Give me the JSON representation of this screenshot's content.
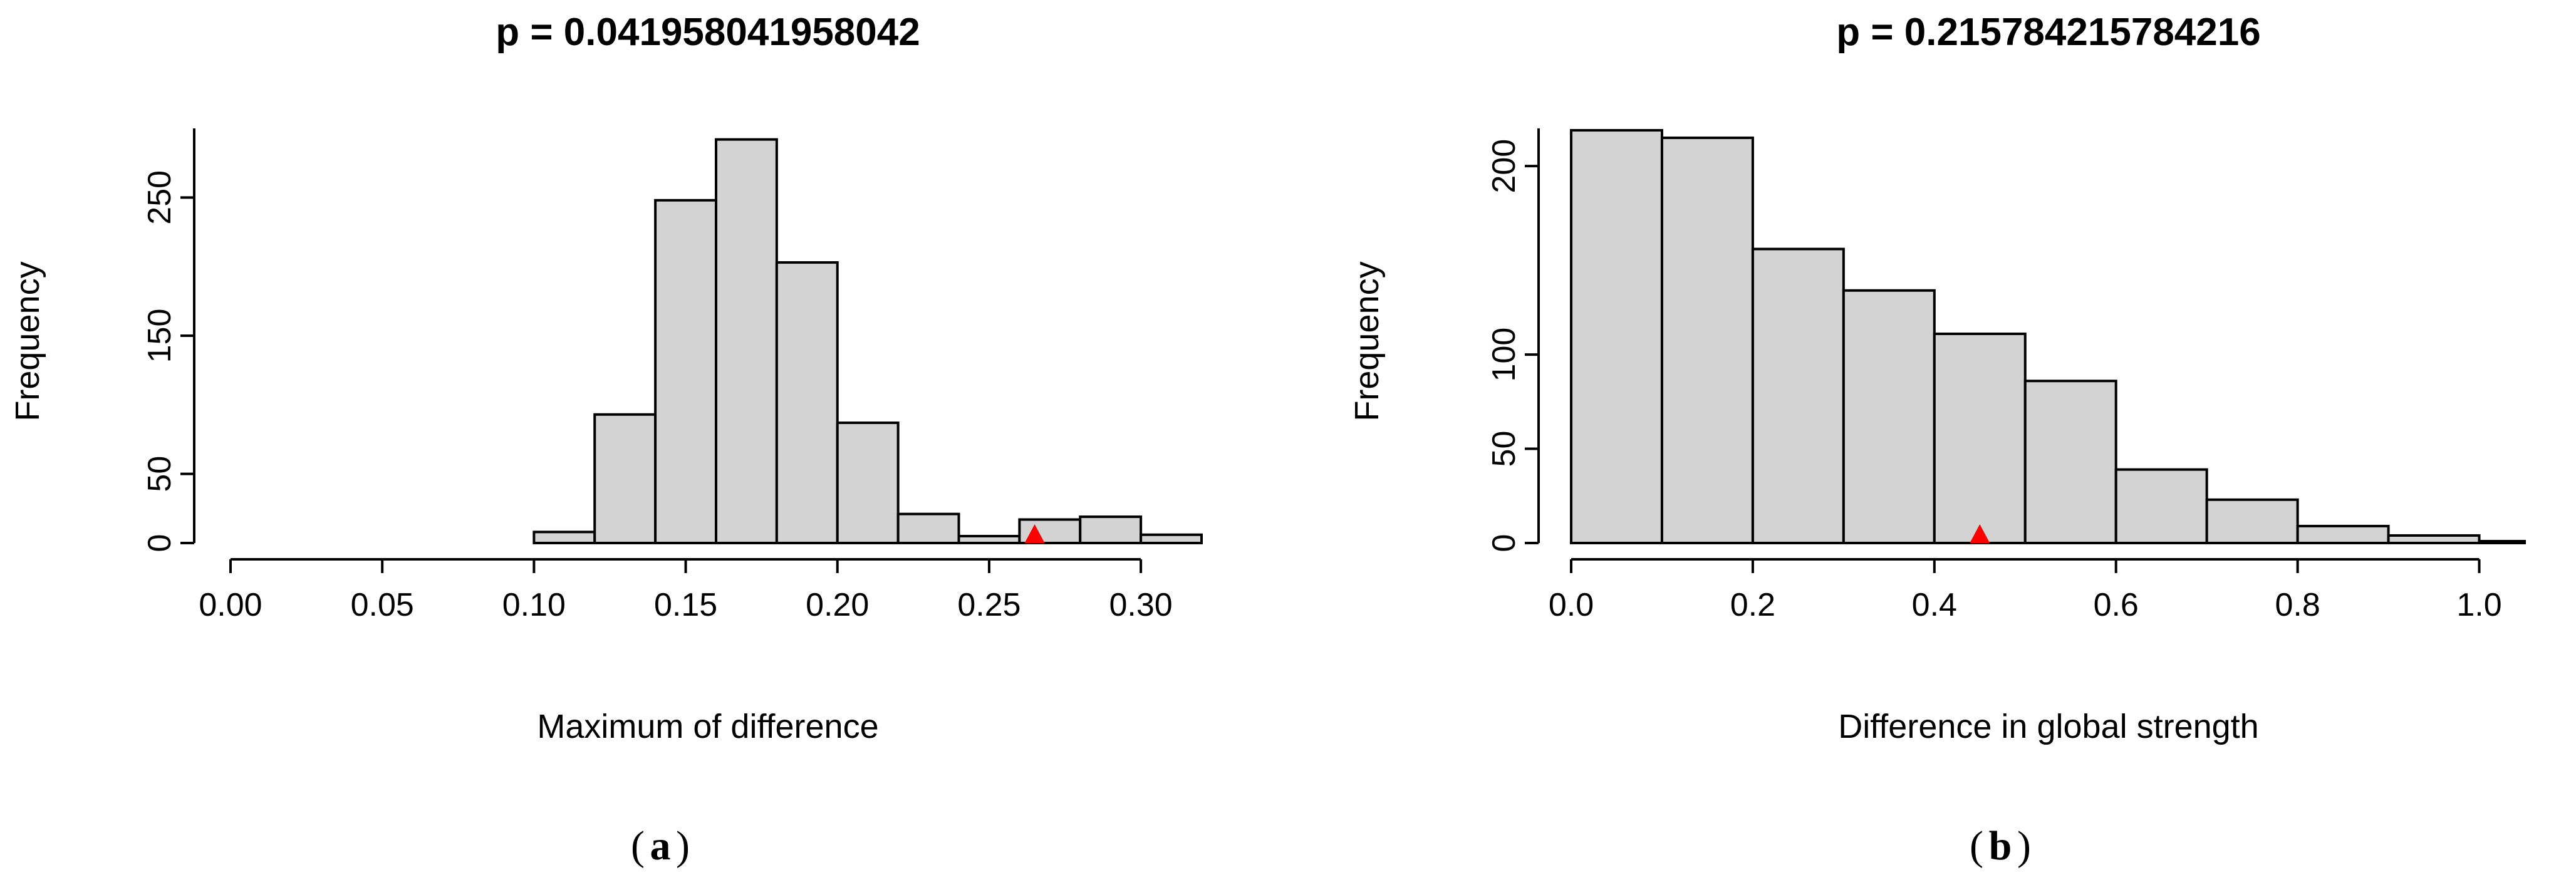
{
  "chart_data": [
    {
      "type": "bar",
      "panel_label": "a",
      "title": "p = 0.041958041958042",
      "xlabel": "Maximum of difference",
      "ylabel": "Frequency",
      "xlim": [
        0.0,
        0.32
      ],
      "ylim": [
        0,
        300
      ],
      "x_ticks": [
        "0.00",
        "0.05",
        "0.10",
        "0.15",
        "0.20",
        "0.25",
        "0.30"
      ],
      "x_tick_values": [
        0.0,
        0.05,
        0.1,
        0.15,
        0.2,
        0.25,
        0.3
      ],
      "y_ticks": [
        "0",
        "50",
        "150",
        "250"
      ],
      "y_tick_values": [
        0,
        50,
        150,
        250
      ],
      "bin_edges": [
        0.1,
        0.12,
        0.14,
        0.16,
        0.18,
        0.2,
        0.22,
        0.24,
        0.26,
        0.28,
        0.3,
        0.32
      ],
      "values": [
        8,
        93,
        248,
        292,
        203,
        87,
        21,
        5,
        17,
        19,
        6
      ],
      "observed_marker": 0.265,
      "marker_color": "#ff0000",
      "bar_color": "#d3d3d3"
    },
    {
      "type": "bar",
      "panel_label": "b",
      "title": "p = 0.215784215784216",
      "xlabel": "Difference in global strength",
      "ylabel": "Frequency",
      "xlim": [
        0.0,
        1.05
      ],
      "ylim": [
        0,
        220
      ],
      "x_ticks": [
        "0.0",
        "0.2",
        "0.4",
        "0.6",
        "0.8",
        "1.0"
      ],
      "x_tick_values": [
        0.0,
        0.2,
        0.4,
        0.6,
        0.8,
        1.0
      ],
      "y_ticks": [
        "0",
        "50",
        "100",
        "200"
      ],
      "y_tick_values": [
        0,
        50,
        100,
        200
      ],
      "bin_edges": [
        0.0,
        0.1,
        0.2,
        0.3,
        0.4,
        0.5,
        0.6,
        0.7,
        0.8,
        0.9,
        1.0,
        1.05
      ],
      "values": [
        219,
        215,
        156,
        134,
        111,
        86,
        39,
        23,
        9,
        4,
        1
      ],
      "observed_marker": 0.45,
      "marker_color": "#ff0000",
      "bar_color": "#d3d3d3"
    }
  ]
}
